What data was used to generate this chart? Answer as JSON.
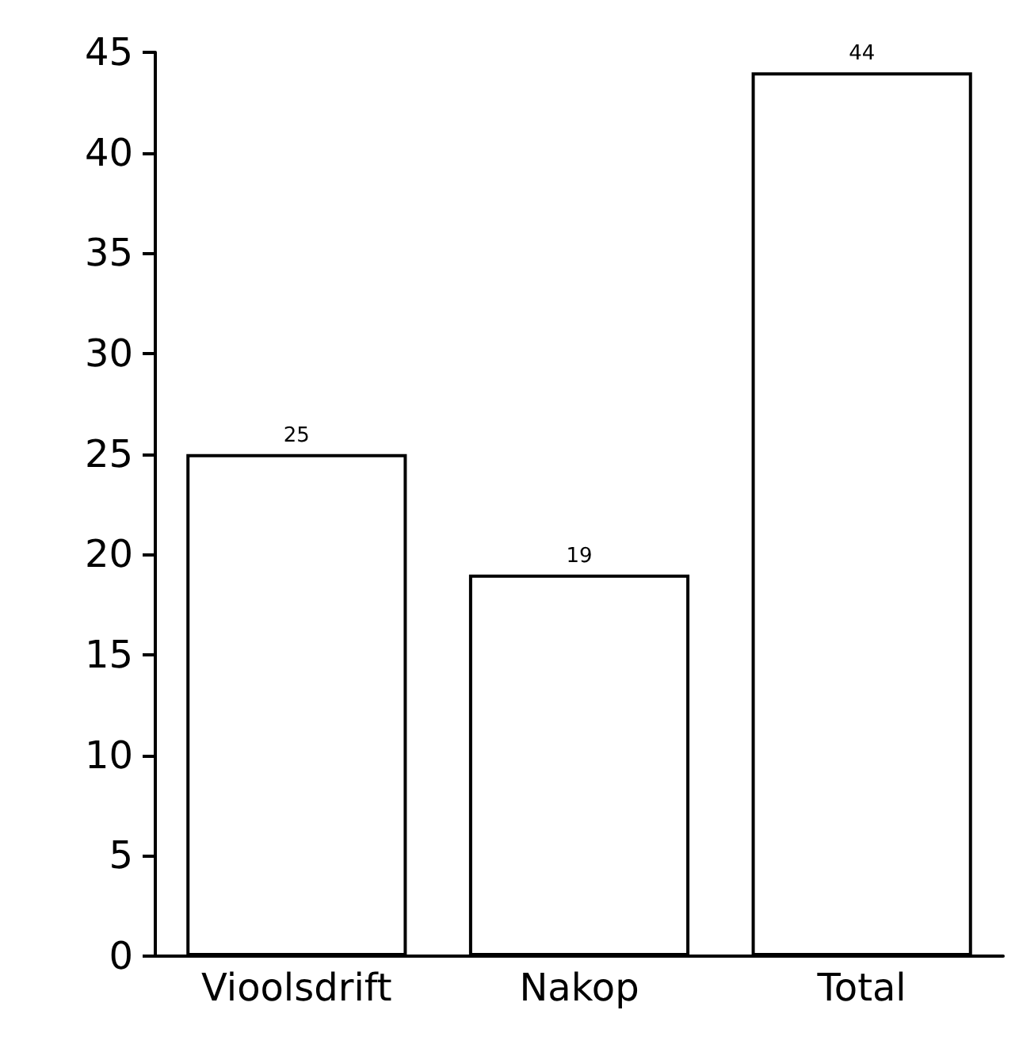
{
  "chart_data": {
    "type": "bar",
    "categories": [
      "Vioolsdrift",
      "Nakop",
      "Total"
    ],
    "values": [
      25,
      19,
      44
    ],
    "color": "#ffffff",
    "ylim": [
      0,
      45
    ],
    "yticks": [
      0,
      5,
      10,
      15,
      20,
      25,
      30,
      35,
      40,
      45
    ],
    "grid": false,
    "data_labels": true
  }
}
